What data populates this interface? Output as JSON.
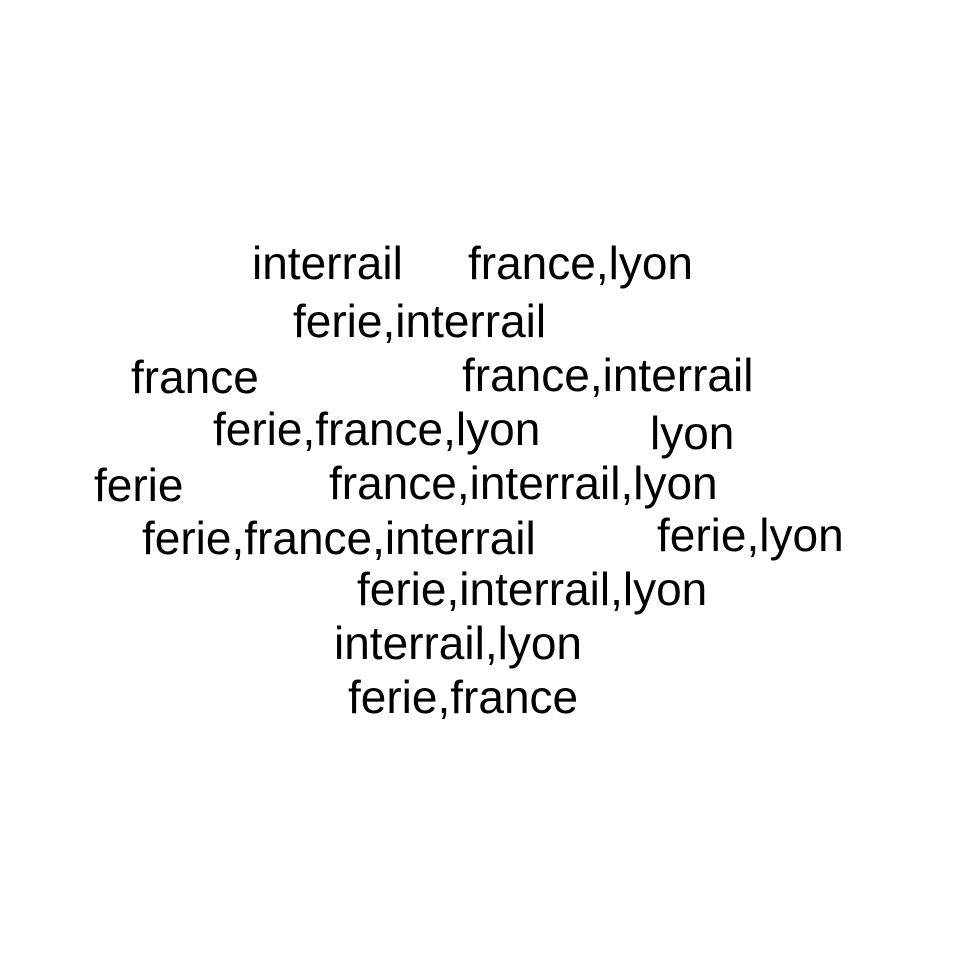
{
  "words": [
    "interrail",
    "france,lyon",
    "ferie,interrail",
    "france",
    "france,interrail",
    "ferie,france,lyon",
    "lyon",
    "ferie",
    "france,interrail,lyon",
    "ferie,france,interrail",
    "ferie,lyon",
    "ferie,interrail,lyon",
    "interrail,lyon",
    "ferie,france"
  ],
  "colors": {
    "background": "#ffffff",
    "text": "#000000"
  }
}
